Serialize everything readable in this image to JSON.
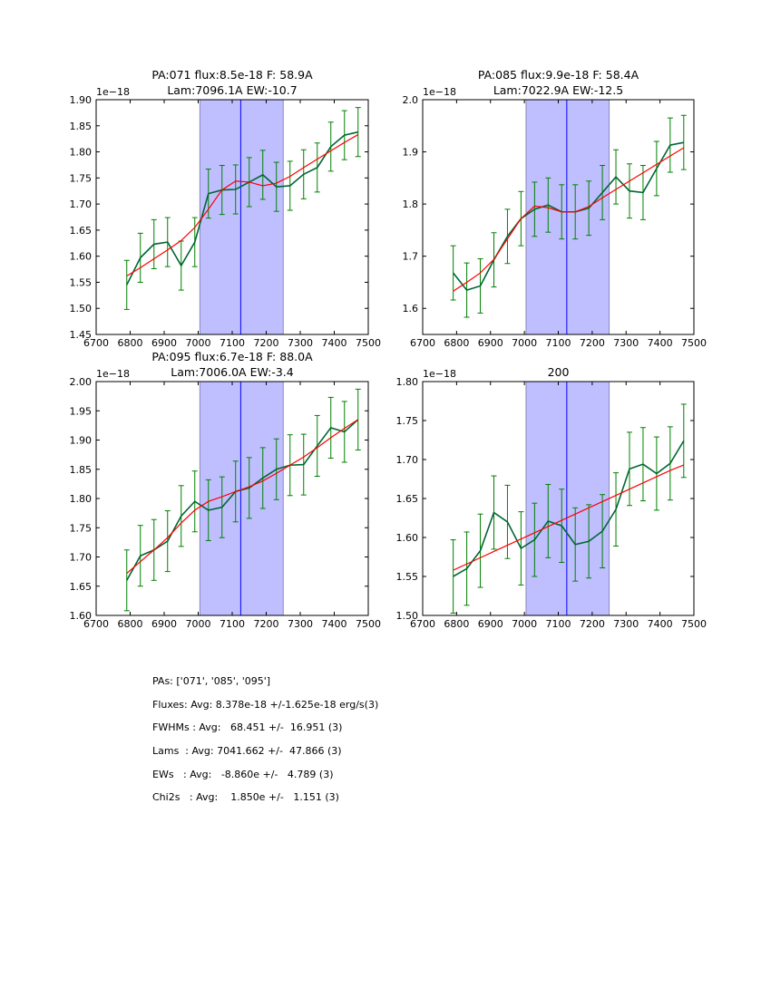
{
  "chart_data": [
    {
      "type": "line",
      "title": [
        "PA:071 flux:8.5e-18 F: 58.9A",
        "Lam:7096.1A EW:-10.7"
      ],
      "offset_label": "1e−18",
      "xlim": [
        6700,
        7500
      ],
      "ylim": [
        1.45,
        1.9
      ],
      "xticks": [
        6700,
        6800,
        6900,
        7000,
        7100,
        7200,
        7300,
        7400,
        7500
      ],
      "yticks": [
        1.45,
        1.5,
        1.55,
        1.6,
        1.65,
        1.7,
        1.75,
        1.8,
        1.85,
        1.9
      ],
      "ytick_decimals": 2,
      "shaded_region": [
        7005,
        7250
      ],
      "center_line": 7125,
      "x": [
        6790,
        6830,
        6870,
        6910,
        6950,
        6990,
        7030,
        7070,
        7110,
        7150,
        7190,
        7230,
        7270,
        7310,
        7350,
        7390,
        7430,
        7470
      ],
      "series": [
        {
          "name": "data",
          "color": "#006633",
          "values": [
            1.545,
            1.597,
            1.623,
            1.627,
            1.582,
            1.627,
            1.72,
            1.727,
            1.728,
            1.742,
            1.756,
            1.733,
            1.735,
            1.757,
            1.77,
            1.81,
            1.832,
            1.838
          ],
          "yerr": 0.047
        },
        {
          "name": "model",
          "color": "#ff0000",
          "values": [
            1.562,
            1.578,
            1.595,
            1.612,
            1.63,
            1.655,
            1.69,
            1.727,
            1.744,
            1.742,
            1.735,
            1.74,
            1.753,
            1.77,
            1.786,
            1.802,
            1.818,
            1.833
          ]
        }
      ]
    },
    {
      "type": "line",
      "title": [
        "PA:085 flux:9.9e-18 F: 58.4A",
        "Lam:7022.9A EW:-12.5"
      ],
      "offset_label": "1e−18",
      "xlim": [
        6700,
        7500
      ],
      "ylim": [
        1.55,
        2.0
      ],
      "xticks": [
        6700,
        6800,
        6900,
        7000,
        7100,
        7200,
        7300,
        7400,
        7500
      ],
      "yticks": [
        1.6,
        1.7,
        1.8,
        1.9,
        2.0
      ],
      "ytick_decimals": 1,
      "shaded_region": [
        7005,
        7250
      ],
      "center_line": 7125,
      "x": [
        6790,
        6830,
        6870,
        6910,
        6950,
        6990,
        7030,
        7070,
        7110,
        7150,
        7190,
        7230,
        7270,
        7310,
        7350,
        7390,
        7430,
        7470
      ],
      "series": [
        {
          "name": "data",
          "color": "#006633",
          "values": [
            1.668,
            1.635,
            1.643,
            1.693,
            1.738,
            1.772,
            1.79,
            1.798,
            1.785,
            1.785,
            1.792,
            1.822,
            1.852,
            1.825,
            1.822,
            1.868,
            1.913,
            1.918
          ],
          "yerr": 0.052
        },
        {
          "name": "model",
          "color": "#ff0000",
          "values": [
            1.633,
            1.65,
            1.668,
            1.694,
            1.733,
            1.772,
            1.796,
            1.793,
            1.785,
            1.785,
            1.795,
            1.812,
            1.828,
            1.844,
            1.86,
            1.876,
            1.892,
            1.908
          ]
        }
      ]
    },
    {
      "type": "line",
      "title": [
        "PA:095 flux:6.7e-18 F: 88.0A",
        "Lam:7006.0A EW:-3.4"
      ],
      "offset_label": "1e−18",
      "xlim": [
        6700,
        7500
      ],
      "ylim": [
        1.6,
        2.0
      ],
      "xticks": [
        6700,
        6800,
        6900,
        7000,
        7100,
        7200,
        7300,
        7400,
        7500
      ],
      "yticks": [
        1.6,
        1.65,
        1.7,
        1.75,
        1.8,
        1.85,
        1.9,
        1.95,
        2.0
      ],
      "ytick_decimals": 2,
      "shaded_region": [
        7005,
        7250
      ],
      "center_line": 7125,
      "x": [
        6790,
        6830,
        6870,
        6910,
        6950,
        6990,
        7030,
        7070,
        7110,
        7150,
        7190,
        7230,
        7270,
        7310,
        7350,
        7390,
        7430,
        7470
      ],
      "series": [
        {
          "name": "data",
          "color": "#006633",
          "values": [
            1.66,
            1.702,
            1.712,
            1.727,
            1.77,
            1.795,
            1.78,
            1.785,
            1.812,
            1.818,
            1.835,
            1.85,
            1.857,
            1.858,
            1.89,
            1.921,
            1.914,
            1.935
          ],
          "yerr": 0.052
        },
        {
          "name": "model",
          "color": "#ff0000",
          "values": [
            1.672,
            1.692,
            1.712,
            1.733,
            1.758,
            1.78,
            1.795,
            1.803,
            1.812,
            1.82,
            1.83,
            1.843,
            1.857,
            1.871,
            1.887,
            1.904,
            1.92,
            1.935
          ]
        }
      ]
    },
    {
      "type": "line",
      "title": [
        "200"
      ],
      "offset_label": "1e−18",
      "xlim": [
        6700,
        7500
      ],
      "ylim": [
        1.5,
        1.8
      ],
      "xticks": [
        6700,
        6800,
        6900,
        7000,
        7100,
        7200,
        7300,
        7400,
        7500
      ],
      "yticks": [
        1.5,
        1.55,
        1.6,
        1.65,
        1.7,
        1.75,
        1.8
      ],
      "ytick_decimals": 2,
      "shaded_region": [
        7005,
        7250
      ],
      "center_line": 7125,
      "x": [
        6790,
        6830,
        6870,
        6910,
        6950,
        6990,
        7030,
        7070,
        7110,
        7150,
        7190,
        7230,
        7270,
        7310,
        7350,
        7390,
        7430,
        7470
      ],
      "series": [
        {
          "name": "data",
          "color": "#006633",
          "values": [
            1.55,
            1.56,
            1.583,
            1.632,
            1.62,
            1.586,
            1.597,
            1.621,
            1.615,
            1.591,
            1.595,
            1.608,
            1.636,
            1.688,
            1.694,
            1.682,
            1.695,
            1.724
          ],
          "yerr": 0.047
        },
        {
          "name": "model",
          "color": "#ff0000",
          "values": [
            1.558,
            1.566,
            1.574,
            1.582,
            1.59,
            1.598,
            1.606,
            1.614,
            1.622,
            1.63,
            1.638,
            1.646,
            1.654,
            1.662,
            1.67,
            1.678,
            1.686,
            1.693
          ]
        }
      ]
    }
  ],
  "stats": [
    "PAs: ['071', '085', '095']",
    "Fluxes: Avg: 8.378e-18 +/-1.625e-18 erg/s(3)",
    "FWHMs : Avg:   68.451 +/-  16.951 (3)",
    "Lams  : Avg: 7041.662 +/-  47.866 (3)",
    "EWs   : Avg:   -8.860e +/-   4.789 (3)",
    "Chi2s   : Avg:    1.850e +/-   1.151 (3)"
  ],
  "colors": {
    "errorbar": "#008000",
    "shade": "#bfbfff",
    "shade_edge": "#8888bb",
    "center_line": "#0000ff"
  }
}
